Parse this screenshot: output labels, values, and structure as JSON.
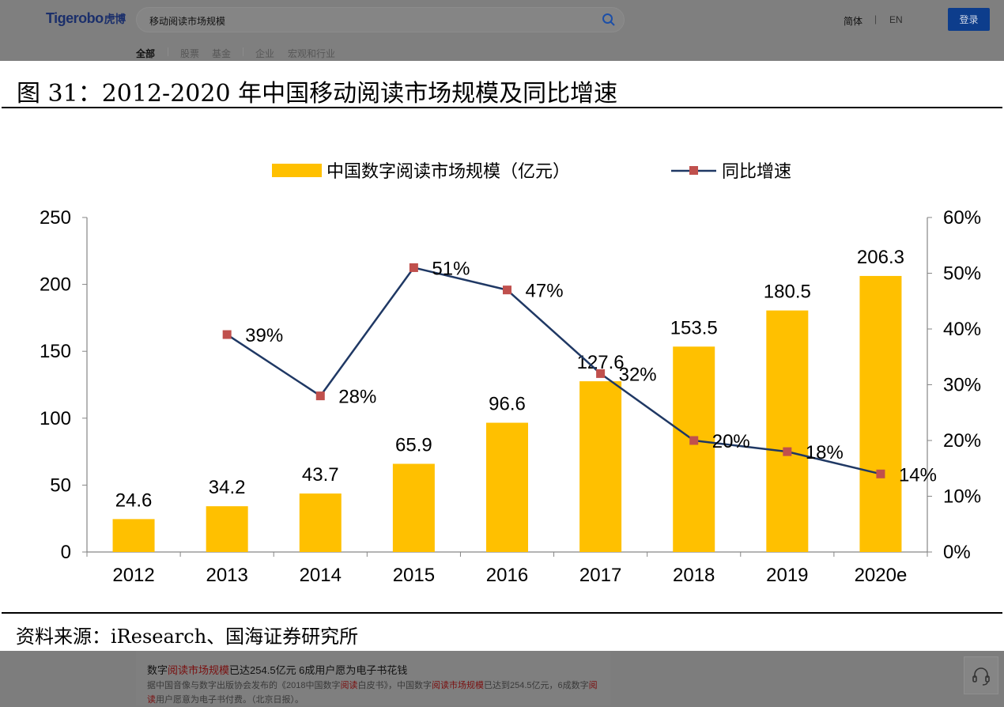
{
  "header": {
    "logo": "Tigerobo",
    "logo_cn": "虎博",
    "search_value": "移动阅读市场规模",
    "lang_cn": "简体",
    "lang_sep": "|",
    "lang_en": "EN",
    "login": "登录"
  },
  "tabs": [
    {
      "label": "全部"
    },
    {
      "label": "股票"
    },
    {
      "label": "基金"
    },
    {
      "label": "企业"
    },
    {
      "label": "宏观和行业"
    }
  ],
  "figure": {
    "title": "图 31：2012-2020 年中国移动阅读市场规模及同比增速",
    "source": "资料来源：iResearch、国海证券研究所"
  },
  "chart_data": {
    "type": "bar",
    "categories": [
      "2012",
      "2013",
      "2014",
      "2015",
      "2016",
      "2017",
      "2018",
      "2019",
      "2020e"
    ],
    "series": [
      {
        "name": "中国数字阅读市场规模（亿元）",
        "type": "bar",
        "axis": "left",
        "color": "#FFC000",
        "values": [
          24.6,
          34.2,
          43.7,
          65.9,
          96.6,
          127.6,
          153.5,
          180.5,
          206.3
        ],
        "labels": [
          "24.6",
          "34.2",
          "43.7",
          "65.9",
          "96.6",
          "127.6",
          "153.5",
          "180.5",
          "206.3"
        ]
      },
      {
        "name": "同比增速",
        "type": "line",
        "axis": "right",
        "color": "#1F3864",
        "marker_color": "#C0504D",
        "values": [
          null,
          39,
          28,
          51,
          47,
          32,
          20,
          18,
          14
        ],
        "labels": [
          "",
          "39%",
          "28%",
          "51%",
          "47%",
          "32%",
          "20%",
          "18%",
          "14%"
        ]
      }
    ],
    "y_left": {
      "range": [
        0,
        250
      ],
      "ticks": [
        "0",
        "50",
        "100",
        "150",
        "200",
        "250"
      ]
    },
    "y_right": {
      "range": [
        0,
        60
      ],
      "ticks": [
        "0%",
        "10%",
        "20%",
        "30%",
        "40%",
        "50%",
        "60%"
      ]
    },
    "legend": "top-center",
    "grid": false
  },
  "news": {
    "title_parts": [
      "数字",
      "阅读市场规模",
      "已达254.5亿元 6成用户愿为电子书花钱"
    ],
    "desc_parts": [
      "据中国音像与数字出版协会发布的《2018中国数字",
      "阅读",
      "白皮书》，中国数字",
      "阅读市场规模",
      "已达到254.5亿元，6成数字",
      "阅读",
      "用户愿意为电子书付费。（北京日报）。"
    ]
  }
}
